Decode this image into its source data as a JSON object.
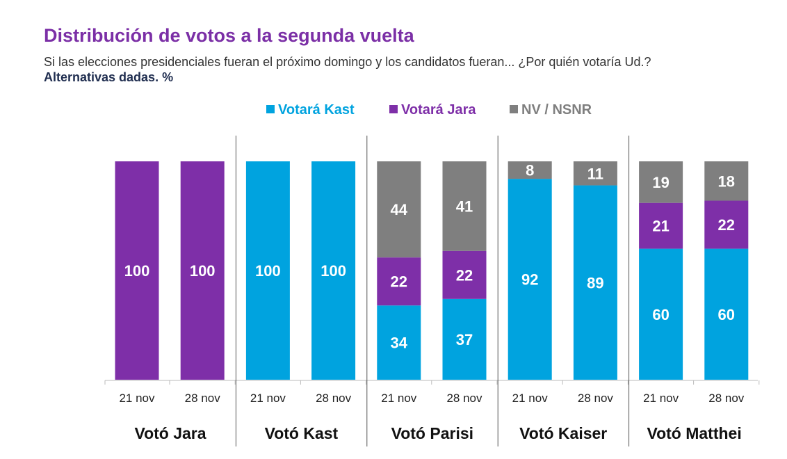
{
  "chart_data": {
    "type": "bar",
    "stacked": true,
    "title": "Distribución de votos a la segunda vuelta",
    "subtitle": "Si las elecciones presidenciales fueran el próximo domingo y los candidatos fueran... ¿Por quién votaría Ud.?",
    "note": "Alternativas dadas. %",
    "legend_position": "top",
    "ylim": [
      0,
      100
    ],
    "groups": [
      "Votó Jara",
      "Votó Kast",
      "Votó Parisi",
      "Votó Kaiser",
      "Votó Matthei"
    ],
    "categories": [
      "21 nov",
      "28 nov",
      "21 nov",
      "28 nov",
      "21 nov",
      "28 nov",
      "21 nov",
      "28 nov",
      "21 nov",
      "28 nov"
    ],
    "series": [
      {
        "name": "Votará Kast",
        "color": "#00A3DF",
        "values": [
          0,
          0,
          100,
          100,
          34,
          37,
          92,
          89,
          60,
          60
        ]
      },
      {
        "name": "Votará Jara",
        "color": "#7E2FA8",
        "values": [
          100,
          100,
          0,
          0,
          22,
          22,
          0,
          0,
          21,
          22
        ]
      },
      {
        "name": "NV / NSNR",
        "color": "#7F7F7F",
        "values": [
          0,
          0,
          0,
          0,
          44,
          41,
          8,
          11,
          19,
          18
        ]
      }
    ]
  }
}
